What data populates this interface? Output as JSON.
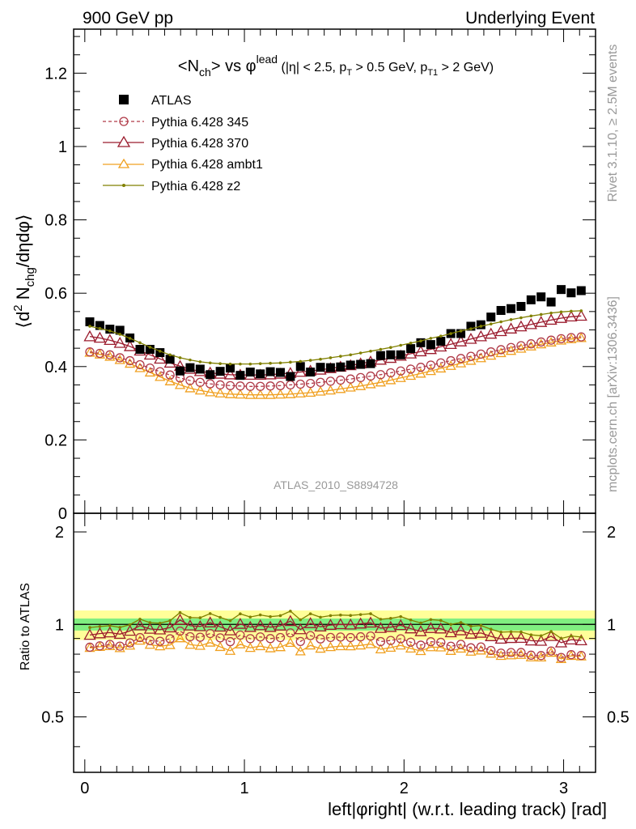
{
  "header": {
    "left": "900 GeV pp",
    "right": "Underlying Event"
  },
  "side_labels": {
    "rivet": "Rivet 3.1.10, ≥ 2.5M events",
    "mcplots": "mcplots.cern.ch [arXiv:1306.3436]"
  },
  "chart_data": [
    {
      "panel": "main",
      "type": "scatter",
      "title_parts": {
        "obs": "<N",
        "obs_sub": "ch",
        "obs_end": "> vs φ",
        "sup": "lead",
        "cuts_a": "(|η| < 2.5, p",
        "cuts_a_sub": "T",
        "cuts_b": " > 0.5 GeV, p",
        "cuts_b_sub": "T1",
        "cuts_c": " > 2 GeV)"
      },
      "ylabel_parts": {
        "a": "⟨d",
        "sup": "2",
        "b": " N",
        "sub": "chg",
        "c": "/dηdφ⟩"
      },
      "xlim": [
        -0.07,
        3.2
      ],
      "ylim": [
        0,
        1.32
      ],
      "yticks": [
        0,
        0.2,
        0.4,
        0.6,
        0.8,
        1,
        1.2
      ],
      "ytick_labels": [
        "0",
        "0.2",
        "0.4",
        "0.6",
        "0.8",
        "1",
        "1.2"
      ],
      "watermark": "ATLAS_2010_S8894728",
      "legend_position": "top-left",
      "x": [
        0.0314,
        0.0942,
        0.1571,
        0.2199,
        0.2827,
        0.3456,
        0.4084,
        0.4712,
        0.5341,
        0.5969,
        0.6597,
        0.7226,
        0.7854,
        0.8482,
        0.9111,
        0.9739,
        1.0367,
        1.0996,
        1.1624,
        1.2252,
        1.2881,
        1.3509,
        1.4137,
        1.4765,
        1.5394,
        1.6022,
        1.665,
        1.7279,
        1.7907,
        1.8535,
        1.9164,
        1.9792,
        2.042,
        2.1049,
        2.1677,
        2.2305,
        2.2934,
        2.3562,
        2.419,
        2.4819,
        2.5447,
        2.6075,
        2.6704,
        2.7332,
        2.796,
        2.8588,
        2.9217,
        2.9845,
        3.0473,
        3.1102
      ],
      "series": [
        {
          "name": "ATLAS",
          "marker": "square",
          "color": "#000000",
          "values": [
            0.522,
            0.512,
            0.502,
            0.499,
            0.478,
            0.447,
            0.447,
            0.438,
            0.42,
            0.388,
            0.397,
            0.393,
            0.378,
            0.387,
            0.396,
            0.376,
            0.385,
            0.38,
            0.386,
            0.384,
            0.373,
            0.4,
            0.385,
            0.398,
            0.397,
            0.399,
            0.404,
            0.406,
            0.408,
            0.43,
            0.432,
            0.432,
            0.449,
            0.465,
            0.46,
            0.469,
            0.49,
            0.49,
            0.51,
            0.514,
            0.535,
            0.553,
            0.558,
            0.564,
            0.582,
            0.59,
            0.576,
            0.61,
            0.601,
            0.607
          ]
        },
        {
          "name": "Pythia 6.428 345",
          "marker": "circle-open",
          "color": "#b03a48",
          "dashed": true,
          "values": [
            0.44,
            0.436,
            0.432,
            0.424,
            0.416,
            0.405,
            0.396,
            0.386,
            0.377,
            0.369,
            0.362,
            0.357,
            0.353,
            0.35,
            0.348,
            0.347,
            0.346,
            0.346,
            0.347,
            0.348,
            0.35,
            0.352,
            0.354,
            0.357,
            0.36,
            0.363,
            0.366,
            0.37,
            0.374,
            0.378,
            0.383,
            0.388,
            0.393,
            0.398,
            0.404,
            0.41,
            0.416,
            0.422,
            0.428,
            0.434,
            0.44,
            0.446,
            0.452,
            0.457,
            0.462,
            0.467,
            0.472,
            0.476,
            0.479,
            0.481
          ]
        },
        {
          "name": "Pythia 6.428 370",
          "marker": "triangle-open",
          "color": "#9b1c2e",
          "values": [
            0.482,
            0.478,
            0.472,
            0.464,
            0.455,
            0.443,
            0.432,
            0.421,
            0.41,
            0.401,
            0.393,
            0.387,
            0.383,
            0.38,
            0.378,
            0.377,
            0.377,
            0.377,
            0.378,
            0.38,
            0.382,
            0.385,
            0.388,
            0.391,
            0.395,
            0.399,
            0.403,
            0.408,
            0.413,
            0.418,
            0.423,
            0.429,
            0.435,
            0.441,
            0.447,
            0.454,
            0.461,
            0.468,
            0.475,
            0.482,
            0.489,
            0.496,
            0.503,
            0.509,
            0.515,
            0.521,
            0.527,
            0.532,
            0.536,
            0.538
          ]
        },
        {
          "name": "Pythia 6.428 ambt1",
          "marker": "triangle-open",
          "color": "#f0a020",
          "values": [
            0.438,
            0.433,
            0.427,
            0.418,
            0.408,
            0.396,
            0.384,
            0.372,
            0.36,
            0.35,
            0.341,
            0.335,
            0.33,
            0.327,
            0.325,
            0.324,
            0.323,
            0.323,
            0.323,
            0.324,
            0.325,
            0.327,
            0.329,
            0.332,
            0.335,
            0.339,
            0.343,
            0.347,
            0.352,
            0.357,
            0.363,
            0.369,
            0.375,
            0.381,
            0.388,
            0.395,
            0.402,
            0.409,
            0.416,
            0.423,
            0.43,
            0.437,
            0.443,
            0.449,
            0.455,
            0.461,
            0.466,
            0.471,
            0.475,
            0.478
          ]
        },
        {
          "name": "Pythia 6.428 z2",
          "marker": "dot",
          "color": "#808000",
          "values": [
            0.51,
            0.504,
            0.497,
            0.488,
            0.477,
            0.465,
            0.453,
            0.442,
            0.432,
            0.424,
            0.418,
            0.413,
            0.41,
            0.408,
            0.407,
            0.407,
            0.407,
            0.408,
            0.409,
            0.41,
            0.412,
            0.414,
            0.417,
            0.42,
            0.424,
            0.428,
            0.432,
            0.437,
            0.442,
            0.447,
            0.452,
            0.458,
            0.464,
            0.47,
            0.477,
            0.483,
            0.49,
            0.497,
            0.503,
            0.51,
            0.516,
            0.522,
            0.528,
            0.533,
            0.538,
            0.542,
            0.546,
            0.549,
            0.551,
            0.552
          ]
        }
      ]
    },
    {
      "panel": "ratio",
      "type": "line",
      "ylabel": "Ratio to ATLAS",
      "xlabel": "left|φright| (w.r.t. leading track) [rad]",
      "xlim": [
        -0.07,
        3.2
      ],
      "xticks": [
        0,
        1,
        2,
        3
      ],
      "xtick_labels": [
        "0",
        "1",
        "2",
        "3"
      ],
      "ylim": [
        0.33,
        2.3
      ],
      "yscale": "log",
      "yticks": [
        0.5,
        1,
        2
      ],
      "ytick_labels": [
        "0.5",
        "1",
        "2"
      ],
      "bands": [
        {
          "name": "ATLAS total uncertainty",
          "lo": 0.89,
          "hi": 1.11,
          "color": "#ffff99"
        },
        {
          "name": "ATLAS stat uncertainty",
          "lo": 0.955,
          "hi": 1.045,
          "color": "#80ee80"
        }
      ],
      "reference": 1
    }
  ]
}
